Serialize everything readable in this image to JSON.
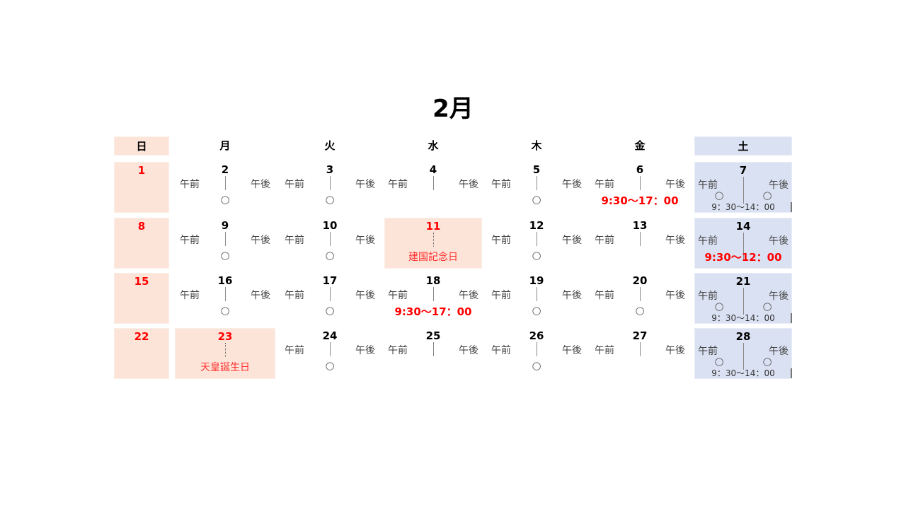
{
  "title": "2月",
  "weekdays": [
    "日",
    "月",
    "火",
    "水",
    "木",
    "金",
    "土"
  ],
  "am_label": "午前",
  "pm_label": "午後",
  "colors": {
    "sunday_holiday_bg": "#fde4d8",
    "saturday_bg": "#dae1f2",
    "red": "#ff0000"
  },
  "mark_icon": "circle-icon",
  "weeks": [
    [
      {
        "day": "1",
        "type": "sun"
      },
      {
        "day": "2",
        "type": "weekday",
        "mark": "○"
      },
      {
        "day": "3",
        "type": "weekday",
        "mark": "○"
      },
      {
        "day": "4",
        "type": "weekday"
      },
      {
        "day": "5",
        "type": "weekday",
        "mark": "○"
      },
      {
        "day": "6",
        "type": "weekday",
        "time": "9:30～17：00"
      },
      {
        "day": "7",
        "type": "sat",
        "am_mark": "○",
        "pm_mark": "○",
        "hours": "9：30～14：00"
      }
    ],
    [
      {
        "day": "8",
        "type": "sun"
      },
      {
        "day": "9",
        "type": "weekday",
        "mark": "○"
      },
      {
        "day": "10",
        "type": "weekday",
        "mark": "○"
      },
      {
        "day": "11",
        "type": "holiday",
        "holiday": "建国記念日"
      },
      {
        "day": "12",
        "type": "weekday",
        "mark": "○"
      },
      {
        "day": "13",
        "type": "weekday"
      },
      {
        "day": "14",
        "type": "sat",
        "time": "9:30～12：00"
      }
    ],
    [
      {
        "day": "15",
        "type": "sun"
      },
      {
        "day": "16",
        "type": "weekday",
        "mark": "○"
      },
      {
        "day": "17",
        "type": "weekday",
        "mark": "○"
      },
      {
        "day": "18",
        "type": "weekday",
        "time": "9:30～17：00"
      },
      {
        "day": "19",
        "type": "weekday",
        "mark": "○"
      },
      {
        "day": "20",
        "type": "weekday",
        "mark": "○"
      },
      {
        "day": "21",
        "type": "sat",
        "am_mark": "○",
        "pm_mark": "○",
        "hours": "9：30～14：00"
      }
    ],
    [
      {
        "day": "22",
        "type": "sun"
      },
      {
        "day": "23",
        "type": "holiday",
        "holiday": "天皇誕生日"
      },
      {
        "day": "24",
        "type": "weekday",
        "mark": "○"
      },
      {
        "day": "25",
        "type": "weekday"
      },
      {
        "day": "26",
        "type": "weekday",
        "mark": "○"
      },
      {
        "day": "27",
        "type": "weekday"
      },
      {
        "day": "28",
        "type": "sat",
        "am_mark": "○",
        "pm_mark": "○",
        "hours": "9：30～14：00"
      }
    ]
  ]
}
